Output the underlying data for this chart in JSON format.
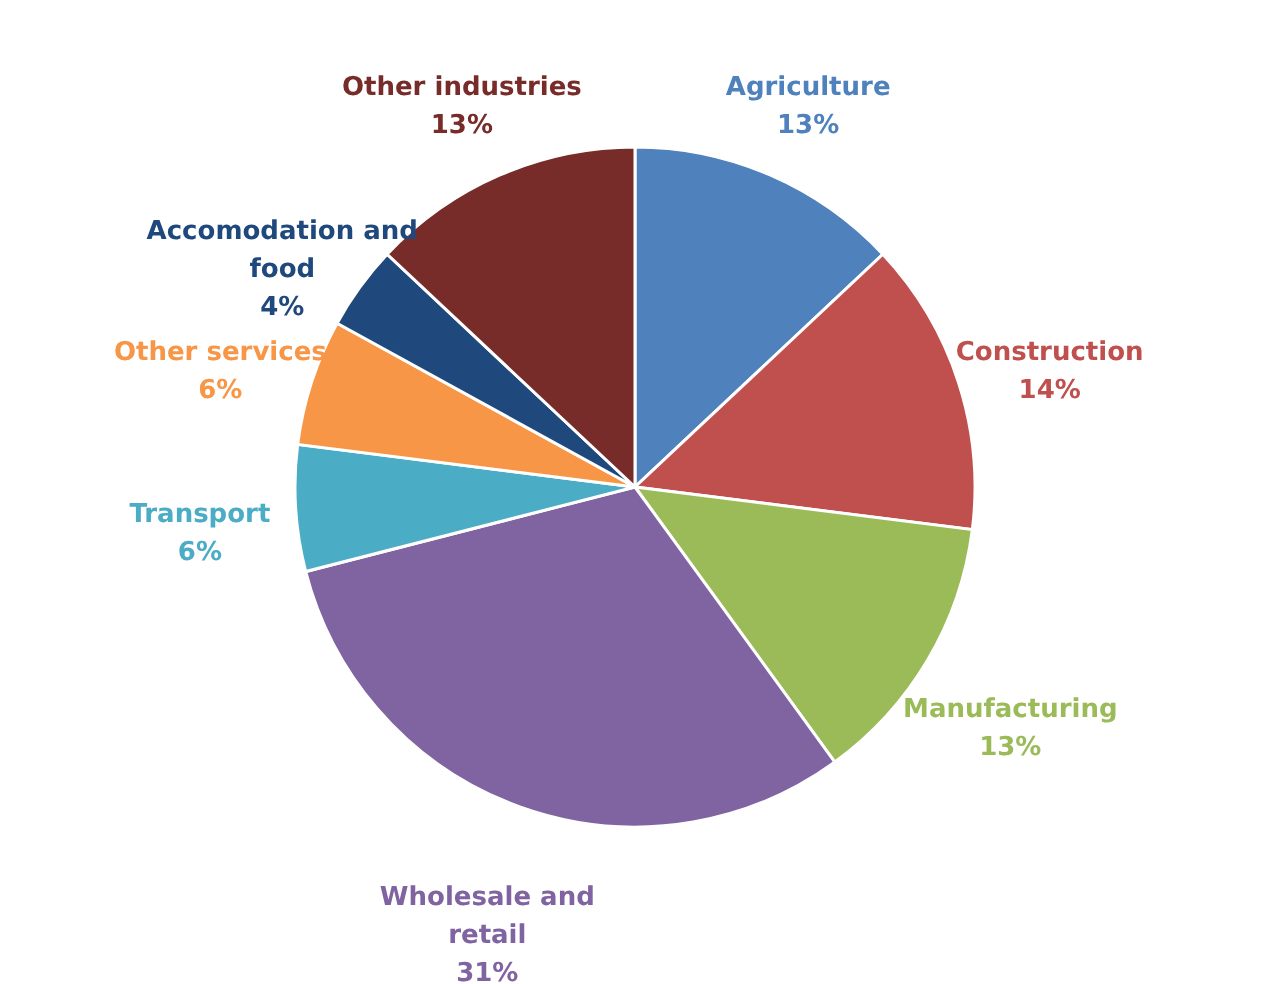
{
  "chart_data": {
    "type": "pie",
    "categories": [
      "Agriculture",
      "Construction",
      "Manufacturing",
      "Wholesale and retail",
      "Transport",
      "Other services",
      "Accomodation and food",
      "Other industries"
    ],
    "values": [
      13,
      14,
      13,
      31,
      6,
      6,
      4,
      13
    ],
    "value_labels": [
      "13%",
      "14%",
      "13%",
      "31%",
      "6%",
      "6%",
      "4%",
      "13%"
    ],
    "colors": [
      "#4f81bd",
      "#c0504d",
      "#9bbb59",
      "#8064a2",
      "#4bacc6",
      "#f79646",
      "#1f497d",
      "#772c2a"
    ],
    "legend": false
  }
}
